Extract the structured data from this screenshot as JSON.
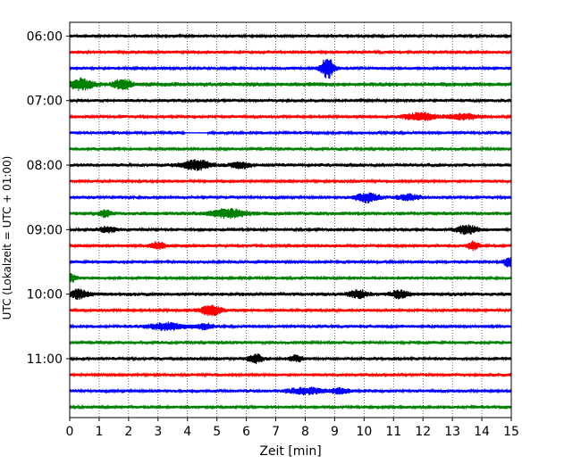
{
  "chart_data": {
    "type": "line",
    "title": "",
    "xlabel": "Zeit  [min]",
    "ylabel": "UTC (Lokalzeit = UTC + 01:00)",
    "xlim": [
      0,
      15
    ],
    "x_ticks": [
      "0",
      "1",
      "2",
      "3",
      "4",
      "5",
      "6",
      "7",
      "8",
      "9",
      "10",
      "11",
      "12",
      "13",
      "14",
      "15"
    ],
    "y_ticks": [
      "06:00",
      "07:00",
      "08:00",
      "09:00",
      "10:00",
      "11:00"
    ],
    "rows_per_hour": 4,
    "minutes_per_row": 15,
    "trace_colors": [
      "#000000",
      "#ff0000",
      "#0000ff",
      "#008000"
    ],
    "grid": "vertical-dotted",
    "traces": [
      {
        "start": "06:00",
        "amplitude": 1.0,
        "events": []
      },
      {
        "start": "06:15",
        "amplitude": 1.0,
        "events": []
      },
      {
        "start": "06:30",
        "amplitude": 1.0,
        "events": [
          {
            "t": 8.75,
            "amp": 6.0,
            "width": 0.22
          }
        ]
      },
      {
        "start": "06:45",
        "amplitude": 1.4,
        "events": [
          {
            "t": 0.4,
            "amp": 2.0,
            "width": 0.4
          },
          {
            "t": 1.8,
            "amp": 1.8,
            "width": 0.3
          }
        ]
      },
      {
        "start": "07:00",
        "amplitude": 1.0,
        "events": []
      },
      {
        "start": "07:15",
        "amplitude": 1.0,
        "events": [
          {
            "t": 11.9,
            "amp": 2.2,
            "width": 0.5
          },
          {
            "t": 13.4,
            "amp": 1.6,
            "width": 0.5
          }
        ]
      },
      {
        "start": "07:30",
        "amplitude": 1.0,
        "events": [],
        "gap": [
          3.9,
          4.7
        ]
      },
      {
        "start": "07:45",
        "amplitude": 1.0,
        "events": []
      },
      {
        "start": "08:00",
        "amplitude": 1.1,
        "events": [
          {
            "t": 4.3,
            "amp": 2.4,
            "width": 0.5
          },
          {
            "t": 5.8,
            "amp": 1.8,
            "width": 0.3
          }
        ]
      },
      {
        "start": "08:15",
        "amplitude": 1.0,
        "events": []
      },
      {
        "start": "08:30",
        "amplitude": 1.0,
        "events": [
          {
            "t": 10.1,
            "amp": 2.4,
            "width": 0.4
          },
          {
            "t": 11.5,
            "amp": 1.5,
            "width": 0.4
          }
        ]
      },
      {
        "start": "08:45",
        "amplitude": 1.2,
        "events": [
          {
            "t": 5.4,
            "amp": 2.0,
            "width": 0.6
          },
          {
            "t": 1.2,
            "amp": 1.4,
            "width": 0.2
          }
        ]
      },
      {
        "start": "09:00",
        "amplitude": 1.0,
        "events": [
          {
            "t": 13.5,
            "amp": 2.4,
            "width": 0.35
          },
          {
            "t": 1.3,
            "amp": 1.5,
            "width": 0.3
          }
        ]
      },
      {
        "start": "09:15",
        "amplitude": 1.0,
        "events": [
          {
            "t": 3.0,
            "amp": 1.8,
            "width": 0.25
          },
          {
            "t": 13.7,
            "amp": 2.2,
            "width": 0.2
          }
        ]
      },
      {
        "start": "09:30",
        "amplitude": 1.0,
        "events": [
          {
            "t": 14.95,
            "amp": 3.0,
            "width": 0.2
          }
        ]
      },
      {
        "start": "09:45",
        "amplitude": 1.0,
        "events": [
          {
            "t": 0.05,
            "amp": 2.2,
            "width": 0.15
          }
        ]
      },
      {
        "start": "10:00",
        "amplitude": 1.2,
        "events": [
          {
            "t": 0.3,
            "amp": 2.0,
            "width": 0.3
          },
          {
            "t": 9.8,
            "amp": 1.7,
            "width": 0.3
          },
          {
            "t": 11.2,
            "amp": 1.6,
            "width": 0.3
          }
        ]
      },
      {
        "start": "10:15",
        "amplitude": 1.0,
        "events": [
          {
            "t": 4.8,
            "amp": 2.8,
            "width": 0.35
          }
        ]
      },
      {
        "start": "10:30",
        "amplitude": 1.0,
        "events": [
          {
            "t": 3.3,
            "amp": 2.0,
            "width": 0.6
          },
          {
            "t": 4.6,
            "amp": 1.5,
            "width": 0.3
          }
        ]
      },
      {
        "start": "10:45",
        "amplitude": 1.0,
        "events": []
      },
      {
        "start": "11:00",
        "amplitude": 1.0,
        "events": [
          {
            "t": 6.3,
            "amp": 2.4,
            "width": 0.25
          },
          {
            "t": 7.7,
            "amp": 1.6,
            "width": 0.25
          }
        ]
      },
      {
        "start": "11:15",
        "amplitude": 1.0,
        "events": []
      },
      {
        "start": "11:30",
        "amplitude": 1.0,
        "events": [
          {
            "t": 8.0,
            "amp": 1.8,
            "width": 0.6
          },
          {
            "t": 9.2,
            "amp": 1.5,
            "width": 0.3
          }
        ]
      },
      {
        "start": "11:45",
        "amplitude": 1.0,
        "events": []
      }
    ]
  }
}
